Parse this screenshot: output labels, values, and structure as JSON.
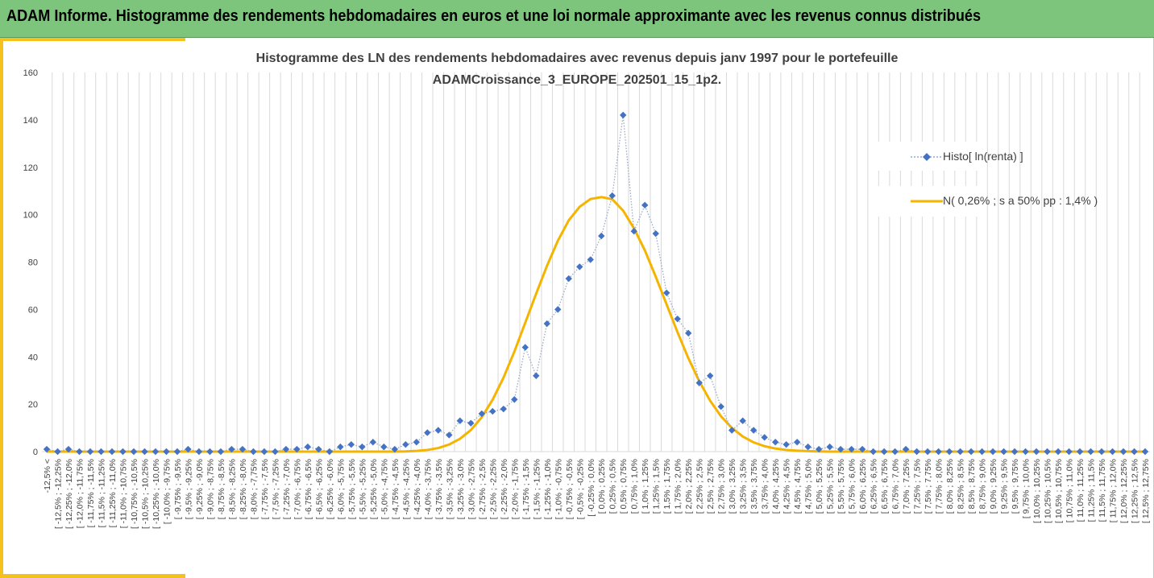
{
  "banner": {
    "title": "ADAM Informe. Histogramme des rendements hebdomadaires en euros et une loi normale approximante avec les revenus connus distribués"
  },
  "colors": {
    "banner": "#7dc57d",
    "accent": "#f4c21a",
    "histo_series": "#4472c4",
    "normal_series": "#f4b400",
    "grid": "#d9d9d9",
    "text": "#404040"
  },
  "chart_data": {
    "type": "line",
    "title": "Histogramme des LN des rendements hebdomadaires avec revenus depuis janv 1997 pour le portefeuille",
    "subtitle": "ADAMCroissance_3_EUROPE_202501_15_1p2.",
    "ylim": [
      0,
      160
    ],
    "yticks": [
      0,
      20,
      40,
      60,
      80,
      100,
      120,
      140,
      160
    ],
    "grid": "vertical",
    "legend_position": "right",
    "categories": [
      "-12,5% <",
      "[ -12,5% ; -12,25%",
      "[ -12,25% ; -12,0%",
      "[ -12,0% ; -11,75%",
      "[ -11,75% ; -11,5%",
      "[ -11,5% ; -11,25%",
      "[ -11,25% ; -11,0%",
      "[ -11,0% ; -10,75%",
      "[ -10,75% ; -10,5%",
      "[ -10,5% ; -10,25%",
      "[ -10,25% ; -10,0%",
      "[ -10,0% ; -9,75%",
      "[ -9,75% ; -9,5%",
      "[ -9,5% ; -9,25%",
      "[ -9,25% ; -9,0%",
      "[ -9,0% ; -8,75%",
      "[ -8,75% ; -8,5%",
      "[ -8,5% ; -8,25%",
      "[ -8,25% ; -8,0%",
      "[ -8,0% ; -7,75%",
      "[ -7,75% ; -7,5%",
      "[ -7,5% ; -7,25%",
      "[ -7,25% ; -7,0%",
      "[ -7,0% ; -6,75%",
      "[ -6,75% ; -6,5%",
      "[ -6,5% ; -6,25%",
      "[ -6,25% ; -6,0%",
      "[ -6,0% ; -5,75%",
      "[ -5,75% ; -5,5%",
      "[ -5,5% ; -5,25%",
      "[ -5,25% ; -5,0%",
      "[ -5,0% ; -4,75%",
      "[ -4,75% ; -4,5%",
      "[ -4,5% ; -4,25%",
      "[ -4,25% ; -4,0%",
      "[ -4,0% ; -3,75%",
      "[ -3,75% ; -3,5%",
      "[ -3,5% ; -3,25%",
      "[ -3,25% ; -3,0%",
      "[ -3,0% ; -2,75%",
      "[ -2,75% ; -2,5%",
      "[ -2,5% ; -2,25%",
      "[ -2,25% ; -2,0%",
      "[ -2,0% ; -1,75%",
      "[ -1,75% ; -1,5%",
      "[ -1,5% ; -1,25%",
      "[ -1,25% ; -1,0%",
      "[ -1,0% ; -0,75%",
      "[ -0,75% ; -0,5%",
      "[ -0,5% ; -0,25%",
      "[ -0,25% ; 0,0%",
      "[ 0,0% ; 0,25%",
      "[ 0,25% ; 0,5%",
      "[ 0,5% ; 0,75%",
      "[ 0,75% ; 1,0%",
      "[ 1,0% ; 1,25%",
      "[ 1,25% ; 1,5%",
      "[ 1,5% ; 1,75%",
      "[ 1,75% ; 2,0%",
      "[ 2,0% ; 2,25%",
      "[ 2,25% ; 2,5%",
      "[ 2,5% ; 2,75%",
      "[ 2,75% ; 3,0%",
      "[ 3,0% ; 3,25%",
      "[ 3,25% ; 3,5%",
      "[ 3,5% ; 3,75%",
      "[ 3,75% ; 4,0%",
      "[ 4,0% ; 4,25%",
      "[ 4,25% ; 4,5%",
      "[ 4,5% ; 4,75%",
      "[ 4,75% ; 5,0%",
      "[ 5,0% ; 5,25%",
      "[ 5,25% ; 5,5%",
      "[ 5,5% ; 5,75%",
      "[ 5,75% ; 6,0%",
      "[ 6,0% ; 6,25%",
      "[ 6,25% ; 6,5%",
      "[ 6,5% ; 6,75%",
      "[ 6,75% ; 7,0%",
      "[ 7,0% ; 7,25%",
      "[ 7,25% ; 7,5%",
      "[ 7,5% ; 7,75%",
      "[ 7,75% ; 8,0%",
      "[ 8,0% ; 8,25%",
      "[ 8,25% ; 8,5%",
      "[ 8,5% ; 8,75%",
      "[ 8,75% ; 9,0%",
      "[ 9,0% ; 9,25%",
      "[ 9,25% ; 9,5%",
      "[ 9,5% ; 9,75%",
      "[ 9,75% ; 10,0%",
      "[ 10,0% ; 10,25%",
      "[ 10,25% ; 10,5%",
      "[ 10,5% ; 10,75%",
      "[ 10,75% ; 11,0%",
      "[ 11,0% ; 11,25%",
      "[ 11,25% ; 11,5%",
      "[ 11,5% ; 11,75%",
      "[ 11,75% ; 12,0%",
      "[ 12,0% ; 12,25%",
      "[ 12,25% ; 12,5%",
      "[ 12,5% ; 12,75%"
    ],
    "series": [
      {
        "name": "Histo[ ln(renta) ]",
        "style": "dotted-line-diamond-markers",
        "values": [
          1,
          0,
          1,
          0,
          0,
          0,
          0,
          0,
          0,
          0,
          0,
          0,
          0,
          1,
          0,
          0,
          0,
          1,
          1,
          0,
          0,
          0,
          1,
          1,
          2,
          1,
          0,
          2,
          3,
          2,
          4,
          2,
          1,
          3,
          4,
          8,
          9,
          7,
          13,
          12,
          16,
          17,
          18,
          22,
          44,
          32,
          54,
          60,
          73,
          78,
          81,
          91,
          108,
          142,
          93,
          104,
          92,
          67,
          56,
          50,
          29,
          32,
          19,
          9,
          13,
          9,
          6,
          4,
          3,
          4,
          2,
          1,
          2,
          1,
          1,
          1,
          0,
          0,
          0,
          1,
          0,
          0,
          0,
          0,
          0,
          0,
          0,
          0,
          0,
          0,
          0,
          0,
          0,
          0,
          0,
          0,
          0,
          0,
          0,
          0,
          0,
          0
        ]
      },
      {
        "name": "N( 0,26% ; s a 50% pp : 1,4% )",
        "style": "smooth-line",
        "values": [
          0,
          0,
          0,
          0,
          0,
          0,
          0,
          0,
          0,
          0,
          0,
          0,
          0,
          0,
          0,
          0,
          0,
          0,
          0,
          0,
          0,
          0,
          0,
          0,
          0,
          0,
          0,
          0,
          0,
          0,
          0,
          0,
          0,
          0.1,
          0.3,
          0.7,
          1.5,
          3.0,
          5.4,
          9.1,
          14.5,
          21.9,
          31.2,
          42.2,
          54.4,
          66.6,
          78.4,
          89.0,
          97.6,
          103.3,
          106.6,
          107.4,
          106.5,
          101.7,
          94.2,
          84.9,
          73.8,
          62.1,
          50.4,
          39.4,
          29.7,
          21.5,
          14.9,
          10.0,
          6.4,
          3.9,
          2.3,
          1.3,
          0.7,
          0.4,
          0.2,
          0.1,
          0,
          0,
          0,
          0,
          0,
          0,
          0,
          0,
          0,
          0,
          0,
          0,
          0,
          0,
          0,
          0,
          0,
          0,
          0,
          0,
          0,
          0,
          0,
          0,
          0,
          0,
          0,
          0,
          0,
          0
        ]
      }
    ]
  }
}
